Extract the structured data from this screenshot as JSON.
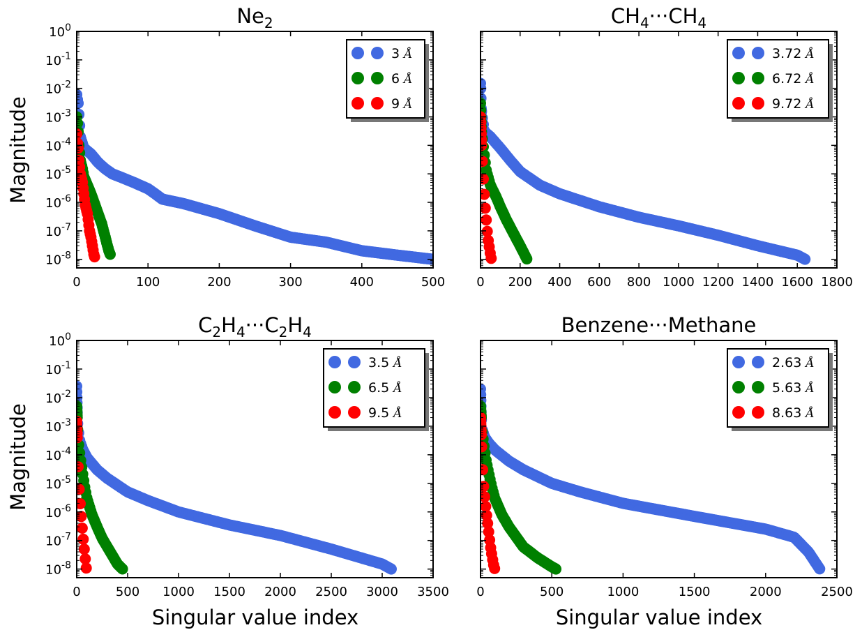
{
  "figure": {
    "ylabel": "Magnitude",
    "xlabel": "Singular value index"
  },
  "colors": {
    "blue": "#4169E1",
    "green": "#008000",
    "red": "#FF0000"
  },
  "chart_data": [
    {
      "id": "p1",
      "type": "scatter",
      "title": "Ne",
      "title_sub": "2",
      "title_parts": [
        {
          "t": "Ne"
        },
        {
          "sub": "2"
        }
      ],
      "xlim": [
        0,
        500
      ],
      "xticks": [
        0,
        100,
        200,
        300,
        400,
        500
      ],
      "xticklabels": [
        "0",
        "100",
        "200",
        "300",
        "400",
        "500"
      ],
      "yscale": "log",
      "ylim": [
        5e-09,
        1
      ],
      "yticks_exp": [
        0,
        -1,
        -2,
        -3,
        -4,
        -5,
        -6,
        -7,
        -8
      ],
      "show_ylabel": true,
      "show_xlabel": false,
      "show_yticklabels": true,
      "legend_loc": "upper right",
      "series": [
        {
          "name": "3",
          "unit": "Å",
          "color": "#4169E1",
          "n": 500,
          "x": [
            0,
            1,
            2,
            5,
            10,
            20,
            30,
            40,
            50,
            60,
            80,
            100,
            110,
            120,
            150,
            200,
            250,
            300,
            350,
            400,
            450,
            500
          ],
          "y": [
            0.006,
            0.004,
            0.003,
            0.0002,
            8e-05,
            5e-05,
            2.5e-05,
            1.5e-05,
            1e-05,
            8e-06,
            5e-06,
            3e-06,
            2e-06,
            1.3e-06,
            9e-07,
            4e-07,
            1.5e-07,
            6e-08,
            4e-08,
            2e-08,
            1.4e-08,
            1e-08
          ]
        },
        {
          "name": "6",
          "unit": "Å",
          "color": "#008000",
          "n": 48,
          "x": [
            0,
            1,
            2,
            3,
            5,
            8,
            10,
            15,
            20,
            25,
            30,
            35,
            40,
            45,
            48
          ],
          "y": [
            0.001,
            0.0006,
            0.0003,
            0.0001,
            3e-05,
            1.5e-05,
            8e-06,
            4e-06,
            2e-06,
            9e-07,
            4e-07,
            1.8e-07,
            6e-08,
            2e-08,
            1.3e-08
          ]
        },
        {
          "name": "9",
          "unit": "Å",
          "color": "#FF0000",
          "n": 26,
          "x": [
            0,
            1,
            2,
            3,
            5,
            8,
            10,
            12,
            15,
            18,
            20,
            22,
            24,
            26
          ],
          "y": [
            0.00025,
            0.00012,
            8e-05,
            3e-05,
            1e-05,
            5e-06,
            2e-06,
            8e-07,
            4e-07,
            1e-07,
            6e-08,
            3e-08,
            1.5e-08,
            1e-08
          ]
        }
      ]
    },
    {
      "id": "p2",
      "type": "scatter",
      "title_parts": [
        {
          "t": "CH"
        },
        {
          "sub": "4"
        },
        {
          "t": "···CH"
        },
        {
          "sub": "4"
        }
      ],
      "xlim": [
        0,
        1800
      ],
      "xticks": [
        0,
        200,
        400,
        600,
        800,
        1000,
        1200,
        1400,
        1600,
        1800
      ],
      "xticklabels": [
        "0",
        "200",
        "400",
        "600",
        "800",
        "1000",
        "1200",
        "1400",
        "1600",
        "1800"
      ],
      "yscale": "log",
      "ylim": [
        5e-09,
        1
      ],
      "yticks_exp": [
        0,
        -1,
        -2,
        -3,
        -4,
        -5,
        -6,
        -7,
        -8
      ],
      "show_ylabel": false,
      "show_xlabel": false,
      "show_yticklabels": false,
      "legend_loc": "upper right",
      "series": [
        {
          "name": "3.72",
          "unit": "Å",
          "color": "#4169E1",
          "n": 1640,
          "x": [
            0,
            1,
            3,
            10,
            20,
            50,
            100,
            150,
            200,
            300,
            400,
            600,
            800,
            1000,
            1200,
            1400,
            1600,
            1640
          ],
          "y": [
            0.015,
            0.01,
            0.002,
            0.0008,
            0.0003,
            0.0002,
            8e-05,
            3e-05,
            1.2e-05,
            4e-06,
            2e-06,
            7e-07,
            3e-07,
            1.5e-07,
            7e-08,
            3e-08,
            1.4e-08,
            1e-08
          ]
        },
        {
          "name": "6.72",
          "unit": "Å",
          "color": "#008000",
          "n": 235,
          "x": [
            0,
            2,
            5,
            10,
            20,
            30,
            50,
            80,
            100,
            130,
            160,
            200,
            235
          ],
          "y": [
            0.003,
            0.001,
            0.0003,
            0.00015,
            4e-05,
            1.2e-05,
            4e-06,
            1.5e-06,
            7e-07,
            2.5e-07,
            1e-07,
            3e-08,
            1e-08
          ]
        },
        {
          "name": "9.72",
          "unit": "Å",
          "color": "#FF0000",
          "n": 55,
          "x": [
            0,
            2,
            5,
            10,
            15,
            20,
            25,
            30,
            35,
            40,
            45,
            50,
            55
          ],
          "y": [
            0.001,
            0.0004,
            0.0001,
            2e-05,
            5e-06,
            1.5e-06,
            5e-07,
            2e-07,
            8e-08,
            4e-08,
            2.5e-08,
            1.5e-08,
            1e-08
          ]
        }
      ]
    },
    {
      "id": "p3",
      "type": "scatter",
      "title_parts": [
        {
          "t": "C"
        },
        {
          "sub": "2"
        },
        {
          "t": "H"
        },
        {
          "sub": "4"
        },
        {
          "t": "···C"
        },
        {
          "sub": "2"
        },
        {
          "t": "H"
        },
        {
          "sub": "4"
        }
      ],
      "xlim": [
        0,
        3500
      ],
      "xticks": [
        0,
        500,
        1000,
        1500,
        2000,
        2500,
        3000,
        3500
      ],
      "xticklabels": [
        "0",
        "500",
        "1000",
        "1500",
        "2000",
        "2500",
        "3000",
        "3500"
      ],
      "yscale": "log",
      "ylim": [
        5e-09,
        1
      ],
      "yticks_exp": [
        0,
        -1,
        -2,
        -3,
        -4,
        -5,
        -6,
        -7,
        -8
      ],
      "show_ylabel": true,
      "show_xlabel": true,
      "show_yticklabels": true,
      "legend_loc": "upper right",
      "series": [
        {
          "name": "3.5",
          "unit": "Å",
          "color": "#4169E1",
          "n": 3090,
          "x": [
            0,
            2,
            5,
            10,
            30,
            60,
            100,
            200,
            300,
            500,
            700,
            1000,
            1500,
            2000,
            2500,
            3000,
            3090
          ],
          "y": [
            0.025,
            0.01,
            0.003,
            0.001,
            0.0003,
            0.00015,
            8e-05,
            3e-05,
            1.5e-05,
            5e-06,
            2.5e-06,
            1e-06,
            3.5e-07,
            1.5e-07,
            5e-08,
            1.5e-08,
            1e-08
          ]
        },
        {
          "name": "6.5",
          "unit": "Å",
          "color": "#008000",
          "n": 450,
          "x": [
            0,
            5,
            10,
            20,
            40,
            60,
            80,
            100,
            150,
            200,
            250,
            300,
            350,
            400,
            450
          ],
          "y": [
            0.005,
            0.002,
            0.0006,
            0.0002,
            6e-05,
            2e-05,
            7e-06,
            3e-06,
            8e-07,
            3e-07,
            1.2e-07,
            6e-08,
            3e-08,
            1.5e-08,
            1e-08
          ]
        },
        {
          "name": "9.5",
          "unit": "Å",
          "color": "#FF0000",
          "n": 95,
          "x": [
            0,
            3,
            5,
            10,
            15,
            20,
            30,
            40,
            50,
            60,
            70,
            80,
            90,
            95
          ],
          "y": [
            0.0015,
            0.0008,
            0.0004,
            0.0001,
            3e-05,
            1e-05,
            3e-06,
            1e-06,
            4e-07,
            1.5e-07,
            7e-08,
            3e-08,
            1.5e-08,
            1e-08
          ]
        }
      ]
    },
    {
      "id": "p4",
      "type": "scatter",
      "title_parts": [
        {
          "t": "Benzene···Methane"
        }
      ],
      "xlim": [
        0,
        2500
      ],
      "xticks": [
        0,
        500,
        1000,
        1500,
        2000,
        2500
      ],
      "xticklabels": [
        "0",
        "500",
        "1000",
        "1500",
        "2000",
        "2500"
      ],
      "yscale": "log",
      "ylim": [
        5e-09,
        1
      ],
      "yticks_exp": [
        0,
        -1,
        -2,
        -3,
        -4,
        -5,
        -6,
        -7,
        -8
      ],
      "show_ylabel": false,
      "show_xlabel": true,
      "show_yticklabels": false,
      "legend_loc": "upper right",
      "series": [
        {
          "name": "2.63",
          "unit": "Å",
          "color": "#4169E1",
          "n": 2380,
          "x": [
            0,
            2,
            5,
            10,
            30,
            60,
            100,
            200,
            300,
            500,
            700,
            1000,
            1500,
            2000,
            2200,
            2300,
            2380
          ],
          "y": [
            0.02,
            0.008,
            0.002,
            0.0008,
            0.0004,
            0.00025,
            0.00015,
            6e-05,
            3e-05,
            1e-05,
            5e-06,
            2e-06,
            7e-07,
            2.5e-07,
            1.3e-07,
            4e-08,
            1e-08
          ]
        },
        {
          "name": "5.63",
          "unit": "Å",
          "color": "#008000",
          "n": 530,
          "x": [
            0,
            5,
            10,
            20,
            40,
            60,
            80,
            100,
            150,
            200,
            300,
            400,
            500,
            530
          ],
          "y": [
            0.005,
            0.002,
            0.0007,
            0.0003,
            6e-05,
            2e-05,
            7e-06,
            3e-06,
            8e-07,
            3e-07,
            6e-08,
            2.5e-08,
            1.2e-08,
            1e-08
          ]
        },
        {
          "name": "8.63",
          "unit": "Å",
          "color": "#FF0000",
          "n": 100,
          "x": [
            0,
            3,
            5,
            10,
            15,
            20,
            30,
            40,
            50,
            60,
            70,
            80,
            90,
            100
          ],
          "y": [
            0.002,
            0.001,
            0.0005,
            0.0001,
            3e-05,
            1e-05,
            3e-06,
            1e-06,
            4e-07,
            1.5e-07,
            6e-08,
            3e-08,
            1.5e-08,
            1e-08
          ]
        }
      ]
    }
  ]
}
